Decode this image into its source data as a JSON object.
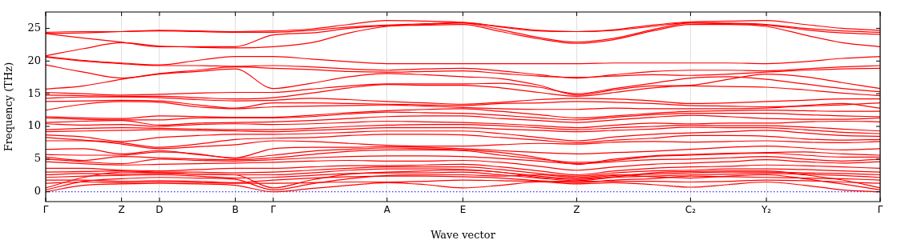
{
  "chart_data": {
    "type": "line",
    "xlabel": "Wave vector",
    "ylabel": "Frequency (THz)",
    "categories": [
      "Γ",
      null,
      "Z",
      "D",
      null,
      "B",
      "Γ",
      null,
      null,
      "A",
      null,
      "E",
      null,
      null,
      "Z",
      null,
      null,
      "C₂",
      null,
      "Y₂",
      null,
      null,
      "Γ"
    ],
    "ylim": [
      -1.5,
      27.5
    ],
    "yticks": [
      0,
      5,
      10,
      15,
      20,
      25
    ],
    "grid": "x",
    "legend": false,
    "ref_lines": [
      {
        "axis": "y",
        "value": 0,
        "color": "#0000ff",
        "line_style": "dotted"
      }
    ],
    "series": [
      {
        "color": "#ff0000",
        "values": [
          24.4,
          24.5,
          24.5,
          24.7,
          24.6,
          24.5,
          24.6,
          24.9,
          25.6,
          26.2,
          26.1,
          25.9,
          25.3,
          24.7,
          24.5,
          24.8,
          25.5,
          26.0,
          26.1,
          26.2,
          25.6,
          25.0,
          24.7
        ]
      },
      {
        "color": "#ff0000",
        "values": [
          24.2,
          24.3,
          24.5,
          24.6,
          24.5,
          24.4,
          24.4,
          24.7,
          25.2,
          25.5,
          25.7,
          25.9,
          25.2,
          24.6,
          24.5,
          24.7,
          25.3,
          25.9,
          25.8,
          25.6,
          25.0,
          24.6,
          24.4
        ]
      },
      {
        "color": "#ff0000",
        "values": [
          24.2,
          23.5,
          22.9,
          22.2,
          22.2,
          22.2,
          24.0,
          24.3,
          25.0,
          25.4,
          25.6,
          25.8,
          24.8,
          23.6,
          22.9,
          23.5,
          24.8,
          25.8,
          25.7,
          25.5,
          24.8,
          24.3,
          24.1
        ]
      },
      {
        "color": "#ff0000",
        "values": [
          20.8,
          21.9,
          22.8,
          22.3,
          22.1,
          22.0,
          22.2,
          22.8,
          24.3,
          25.3,
          25.5,
          25.6,
          24.5,
          23.4,
          22.7,
          23.3,
          24.6,
          25.6,
          25.6,
          25.3,
          24.0,
          22.8,
          22.2
        ]
      },
      {
        "color": "#ff0000",
        "values": [
          20.7,
          20.1,
          19.7,
          19.4,
          20.1,
          20.7,
          20.7,
          20.3,
          19.9,
          19.6,
          19.6,
          19.6,
          19.6,
          19.6,
          19.6,
          19.7,
          19.7,
          19.7,
          19.7,
          19.6,
          19.9,
          20.4,
          20.7
        ]
      },
      {
        "color": "#ff0000",
        "values": [
          20.6,
          20.0,
          19.6,
          19.3,
          19.3,
          19.2,
          19.3,
          19.1,
          18.8,
          18.6,
          18.8,
          18.9,
          18.5,
          17.9,
          17.4,
          17.9,
          18.4,
          18.6,
          18.6,
          18.5,
          18.8,
          19.1,
          19.3
        ]
      },
      {
        "color": "#ff0000",
        "values": [
          19.4,
          18.3,
          17.4,
          18.1,
          18.6,
          19.1,
          18.9,
          18.7,
          18.4,
          18.3,
          18.4,
          18.5,
          18.1,
          17.7,
          17.5,
          17.7,
          17.9,
          17.8,
          18.0,
          18.3,
          18.6,
          18.8,
          18.9
        ]
      },
      {
        "color": "#ff0000",
        "values": [
          15.7,
          16.2,
          17.2,
          18.0,
          18.4,
          18.8,
          15.8,
          16.6,
          17.6,
          18.1,
          17.9,
          17.6,
          17.3,
          16.3,
          14.8,
          15.6,
          16.2,
          16.3,
          17.2,
          18.0,
          17.6,
          16.7,
          15.8
        ]
      },
      {
        "color": "#ff0000",
        "values": [
          15.2,
          15.0,
          14.8,
          14.9,
          15.1,
          15.2,
          15.2,
          15.7,
          16.2,
          16.5,
          16.5,
          16.5,
          16.6,
          16.0,
          15.0,
          15.8,
          16.6,
          17.4,
          17.6,
          17.2,
          16.5,
          15.8,
          15.3
        ]
      },
      {
        "color": "#ff0000",
        "values": [
          14.8,
          14.7,
          14.6,
          14.6,
          14.4,
          14.2,
          14.4,
          15.1,
          15.9,
          16.4,
          16.3,
          16.3,
          15.9,
          15.2,
          14.6,
          15.2,
          15.9,
          16.2,
          16.1,
          16.0,
          15.6,
          15.1,
          14.7
        ]
      },
      {
        "color": "#ff0000",
        "values": [
          14.3,
          14.5,
          14.5,
          14.4,
          14.1,
          13.9,
          14.0,
          14.3,
          14.1,
          13.8,
          13.6,
          13.4,
          13.7,
          14.1,
          14.3,
          14.2,
          13.9,
          13.5,
          13.6,
          13.8,
          14.0,
          14.2,
          14.2
        ]
      },
      {
        "color": "#ff0000",
        "values": [
          13.8,
          13.9,
          14.0,
          13.9,
          13.3,
          12.8,
          13.6,
          13.6,
          13.5,
          13.4,
          13.3,
          13.2,
          13.5,
          13.6,
          13.8,
          13.7,
          13.5,
          13.2,
          13.1,
          13.0,
          13.1,
          13.3,
          13.6
        ]
      },
      {
        "color": "#ff0000",
        "values": [
          12.5,
          13.4,
          13.8,
          13.7,
          13.0,
          12.7,
          13.0,
          13.1,
          13.2,
          13.3,
          13.1,
          12.9,
          12.7,
          12.6,
          12.6,
          12.8,
          12.7,
          12.7,
          12.7,
          12.8,
          13.2,
          13.5,
          12.8
        ]
      },
      {
        "color": "#ff0000",
        "values": [
          11.5,
          11.3,
          11.2,
          11.6,
          11.5,
          11.4,
          11.4,
          11.7,
          12.1,
          12.4,
          12.6,
          12.7,
          12.3,
          11.8,
          11.3,
          11.6,
          12.0,
          12.3,
          12.4,
          12.5,
          12.4,
          12.3,
          12.3
        ]
      },
      {
        "color": "#ff0000",
        "values": [
          11.3,
          11.1,
          11.0,
          11.0,
          11.3,
          11.3,
          11.3,
          11.5,
          11.9,
          12.2,
          12.1,
          12.0,
          11.7,
          11.3,
          11.0,
          11.4,
          11.8,
          12.0,
          12.0,
          12.0,
          11.8,
          11.6,
          11.5
        ]
      },
      {
        "color": "#ff0000",
        "values": [
          10.6,
          10.8,
          10.9,
          10.2,
          10.5,
          10.6,
          10.7,
          10.9,
          11.2,
          11.5,
          11.6,
          11.6,
          11.2,
          10.9,
          10.6,
          11.0,
          11.4,
          11.7,
          11.5,
          11.2,
          11.1,
          11.1,
          11.3
        ]
      },
      {
        "color": "#ff0000",
        "values": [
          10.4,
          10.2,
          10.3,
          10.0,
          10.3,
          10.4,
          10.3,
          10.4,
          10.6,
          10.8,
          10.7,
          10.6,
          10.4,
          10.1,
          9.8,
          10.2,
          10.5,
          10.4,
          10.5,
          10.5,
          10.7,
          10.8,
          10.7
        ]
      },
      {
        "color": "#ff0000",
        "values": [
          9.5,
          9.7,
          9.8,
          9.7,
          9.6,
          9.5,
          9.5,
          9.7,
          10.0,
          10.2,
          10.3,
          10.3,
          10.1,
          9.8,
          9.5,
          9.8,
          10.0,
          10.2,
          10.1,
          10.1,
          9.9,
          9.6,
          9.3
        ]
      },
      {
        "color": "#ff0000",
        "values": [
          9.2,
          9.3,
          9.4,
          9.5,
          9.4,
          9.3,
          9.2,
          9.4,
          9.6,
          9.8,
          9.8,
          9.8,
          9.6,
          9.4,
          9.2,
          9.4,
          9.6,
          9.9,
          9.8,
          9.8,
          9.5,
          9.1,
          8.9
        ]
      },
      {
        "color": "#ff0000",
        "values": [
          8.7,
          8.4,
          7.7,
          8.3,
          8.6,
          8.8,
          8.8,
          8.9,
          9.1,
          9.3,
          9.3,
          9.3,
          8.9,
          8.3,
          7.8,
          8.4,
          8.8,
          9.0,
          9.2,
          9.4,
          9.0,
          8.6,
          8.5
        ]
      },
      {
        "color": "#ff0000",
        "values": [
          8.3,
          7.9,
          7.5,
          6.8,
          7.3,
          8.0,
          8.2,
          8.3,
          8.6,
          8.8,
          8.8,
          8.7,
          8.3,
          7.9,
          7.5,
          7.9,
          8.2,
          8.6,
          8.6,
          8.5,
          8.1,
          7.9,
          8.0
        ]
      },
      {
        "color": "#ff0000",
        "values": [
          7.8,
          7.8,
          7.3,
          6.6,
          6.9,
          7.2,
          7.8,
          7.7,
          7.4,
          7.1,
          7.0,
          7.0,
          7.2,
          7.4,
          7.3,
          7.6,
          7.7,
          7.6,
          7.7,
          7.8,
          7.6,
          7.5,
          7.7
        ]
      },
      {
        "color": "#ff0000",
        "values": [
          6.5,
          6.6,
          5.8,
          6.3,
          5.7,
          5.2,
          6.6,
          6.8,
          6.8,
          6.9,
          6.8,
          6.6,
          6.3,
          6.0,
          5.8,
          6.0,
          6.2,
          6.5,
          6.8,
          7.0,
          6.7,
          6.4,
          6.6
        ]
      },
      {
        "color": "#ff0000",
        "values": [
          5.7,
          5.6,
          5.6,
          6.1,
          5.8,
          5.1,
          5.6,
          6.2,
          6.5,
          6.7,
          6.6,
          6.4,
          6.0,
          5.2,
          4.2,
          5.0,
          5.5,
          5.7,
          5.9,
          6.0,
          6.1,
          5.8,
          5.6
        ]
      },
      {
        "color": "#ff0000",
        "values": [
          5.3,
          4.8,
          5.4,
          5.2,
          5.0,
          4.9,
          5.2,
          5.7,
          6.2,
          6.4,
          6.4,
          6.3,
          5.6,
          5.0,
          4.5,
          4.8,
          5.4,
          5.6,
          5.8,
          5.9,
          5.6,
          5.3,
          5.3
        ]
      },
      {
        "color": "#ff0000",
        "values": [
          5.0,
          4.6,
          4.3,
          5.0,
          4.8,
          4.7,
          4.9,
          5.2,
          5.4,
          5.5,
          5.5,
          5.4,
          5.1,
          4.7,
          4.3,
          4.6,
          4.9,
          5.0,
          5.2,
          5.4,
          5.0,
          4.7,
          5.0
        ]
      },
      {
        "color": "#ff0000",
        "values": [
          4.6,
          4.3,
          4.1,
          4.2,
          4.3,
          4.4,
          4.5,
          4.7,
          4.8,
          4.7,
          4.7,
          4.8,
          4.5,
          3.9,
          3.3,
          3.8,
          4.2,
          4.4,
          4.6,
          4.9,
          4.6,
          4.4,
          4.6
        ]
      },
      {
        "color": "#ff0000",
        "values": [
          3.6,
          3.6,
          3.3,
          3.2,
          3.4,
          3.6,
          3.6,
          3.8,
          4.0,
          4.0,
          4.1,
          4.2,
          3.8,
          3.2,
          2.6,
          3.2,
          3.6,
          3.8,
          3.9,
          4.1,
          4.0,
          3.8,
          3.6
        ]
      },
      {
        "color": "#ff0000",
        "values": [
          3.0,
          3.1,
          3.2,
          3.0,
          3.0,
          2.9,
          3.0,
          3.3,
          3.6,
          3.8,
          3.8,
          3.8,
          3.4,
          2.8,
          2.4,
          2.9,
          3.2,
          3.3,
          3.5,
          3.5,
          3.4,
          3.2,
          3.0
        ]
      },
      {
        "color": "#ff0000",
        "values": [
          2.6,
          2.8,
          2.7,
          2.8,
          2.7,
          2.6,
          2.6,
          2.9,
          3.3,
          3.5,
          3.5,
          3.4,
          3.0,
          2.4,
          2.0,
          2.5,
          2.7,
          2.9,
          3.0,
          3.0,
          2.9,
          2.8,
          2.6
        ]
      },
      {
        "color": "#ff0000",
        "values": [
          2.2,
          2.4,
          2.5,
          2.6,
          2.4,
          2.1,
          2.2,
          2.5,
          2.8,
          2.9,
          2.9,
          3.0,
          2.6,
          2.1,
          1.7,
          2.2,
          2.4,
          2.6,
          2.7,
          2.8,
          2.7,
          2.5,
          2.2
        ]
      },
      {
        "color": "#ff0000",
        "values": [
          1.8,
          1.8,
          1.6,
          1.7,
          1.6,
          1.4,
          1.8,
          2.1,
          2.3,
          2.4,
          2.4,
          2.3,
          2.1,
          1.7,
          1.4,
          1.8,
          2.0,
          2.4,
          2.3,
          2.2,
          2.1,
          2.0,
          1.8
        ]
      },
      {
        "color": "#ff0000",
        "values": [
          1.3,
          1.5,
          1.4,
          1.5,
          1.4,
          1.3,
          1.3,
          1.4,
          1.5,
          1.5,
          1.6,
          1.8,
          1.7,
          1.6,
          1.6,
          1.6,
          1.6,
          1.5,
          1.6,
          1.8,
          1.7,
          1.5,
          1.3
        ]
      },
      {
        "color": "#ff0000",
        "values": [
          0,
          1.0,
          1.2,
          1.3,
          1.2,
          1.0,
          0,
          0.5,
          1.0,
          1.4,
          1.1,
          0.6,
          1.0,
          1.5,
          1.2,
          1.4,
          1.1,
          0.7,
          1.1,
          1.5,
          1.0,
          0.3,
          0
        ]
      },
      {
        "color": "#ff0000",
        "values": [
          0.3,
          1.6,
          2.0,
          2.2,
          2.1,
          1.9,
          0.3,
          1.2,
          2.0,
          2.5,
          2.6,
          2.6,
          2.4,
          2.6,
          2.2,
          2.6,
          2.3,
          2.1,
          2.4,
          2.6,
          2.0,
          1.2,
          0.3
        ]
      },
      {
        "color": "#ff0000",
        "values": [
          0.6,
          2.2,
          3.0,
          2.9,
          2.7,
          2.6,
          0.6,
          1.8,
          2.7,
          3.0,
          3.2,
          3.3,
          3.0,
          2.2,
          1.9,
          2.3,
          2.9,
          3.1,
          3.2,
          3.2,
          2.6,
          1.8,
          0.6
        ]
      }
    ]
  }
}
